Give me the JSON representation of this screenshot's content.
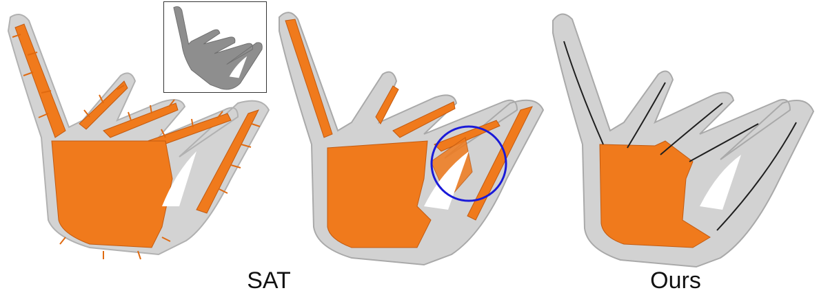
{
  "colors": {
    "shell": "#c9c9c9",
    "shell_edge": "#a9a9a9",
    "axis_orange": "#f07a1c",
    "skeleton_line": "#1f1f1f",
    "highlight_circle": "#1a1ad8",
    "inset_mesh": "#8e8e8e"
  },
  "captions": {
    "left": "SAT",
    "right": "Ours"
  },
  "panels": [
    {
      "id": "sat-spiky",
      "description_icon": "hand-mesh-icon"
    },
    {
      "id": "sat-refined",
      "description_icon": "hand-mesh-icon"
    },
    {
      "id": "ours",
      "description_icon": "hand-mesh-icon"
    }
  ],
  "inset": {
    "icon": "hand-input-mesh-icon"
  }
}
